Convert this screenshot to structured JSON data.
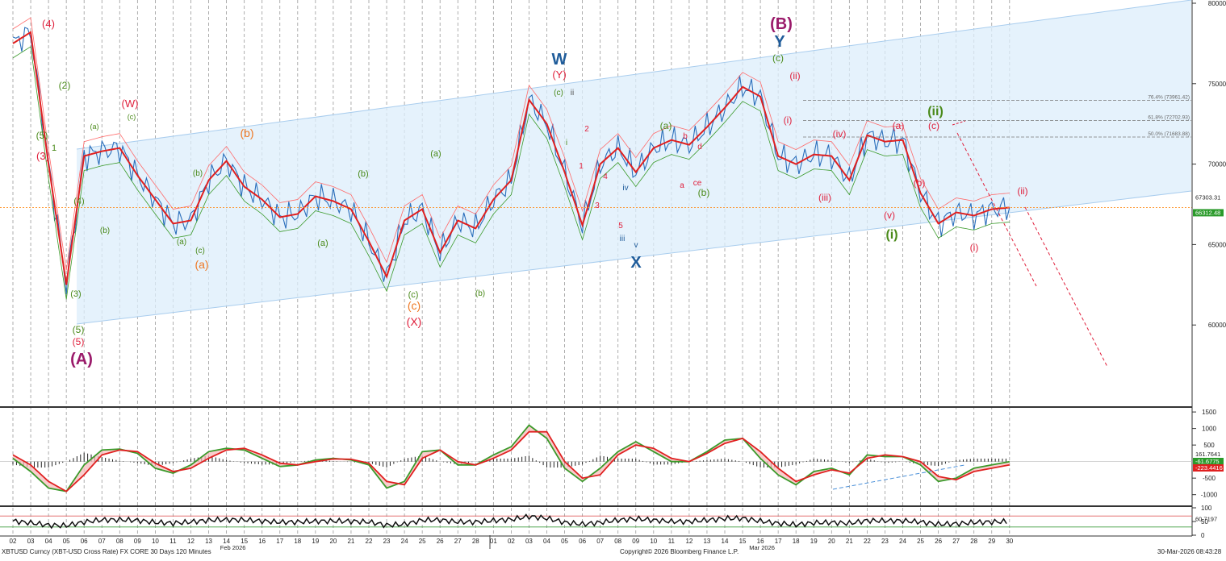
{
  "chart_data": [
    {
      "type": "line",
      "panel": "price",
      "series": [
        {
          "name": "XBT-USD Cross Rate (approx. 2h closes)",
          "x": [
            "02",
            "03",
            "04",
            "05",
            "06",
            "07",
            "08",
            "09",
            "10",
            "11",
            "12",
            "13",
            "14",
            "15",
            "16",
            "17",
            "18",
            "19",
            "20",
            "21",
            "22",
            "23",
            "24",
            "25",
            "26",
            "27",
            "28",
            "01",
            "02",
            "03",
            "04",
            "05",
            "06",
            "07",
            "08",
            "09",
            "10",
            "11",
            "12",
            "13",
            "14",
            "15",
            "16",
            "17",
            "18",
            "19",
            "20",
            "21",
            "22",
            "23",
            "24",
            "25",
            "26",
            "27",
            "28",
            "29",
            "30"
          ],
          "values": [
            77500,
            78200,
            70000,
            62500,
            70500,
            70800,
            71000,
            69300,
            67800,
            66300,
            66500,
            69000,
            70200,
            68600,
            67800,
            66700,
            66900,
            68000,
            67700,
            67200,
            65200,
            63000,
            66500,
            67200,
            64500,
            66500,
            66000,
            67800,
            69000,
            74000,
            72500,
            69500,
            66200,
            70000,
            71000,
            69500,
            71000,
            71500,
            71200,
            72300,
            73500,
            74800,
            74200,
            70500,
            70000,
            70600,
            70500,
            69000,
            71800,
            71400,
            71500,
            68200,
            66300,
            67000,
            66800,
            67200,
            67300
          ]
        }
      ],
      "y_ticks": [
        80000,
        75000,
        70000,
        65000,
        60000
      ],
      "ylim": [
        55000,
        80200
      ],
      "price_tags": [
        "67303.31",
        "66312.48"
      ],
      "fib_levels": [
        "76.4% (73961.42)",
        "61.8% (72702.93)",
        "50.0% (71683.88)"
      ],
      "wave_labels": [
        "(A)",
        "(B)",
        "(W)",
        "(X)",
        "(Y)",
        "W",
        "X",
        "Y",
        "(a)",
        "(b)",
        "(c)",
        "(i)",
        "(ii)",
        "(iii)",
        "(iv)",
        "(v)",
        "(1)",
        "(2)",
        "(3)",
        "(4)",
        "(5)",
        "a",
        "b",
        "c",
        "d",
        "e",
        "i",
        "ii",
        "iii",
        "iv",
        "v",
        "1",
        "2",
        "3",
        "4",
        "5"
      ],
      "x_axis_months": [
        "Feb 2026",
        "Mar 2026"
      ]
    },
    {
      "type": "line",
      "panel": "macd",
      "y_ticks": [
        "1500",
        "1000",
        "500",
        "-500",
        "-1000"
      ],
      "value_tags": [
        "161.7641",
        "-61.6775",
        "-223.4416"
      ],
      "macd": [
        100,
        -300,
        -800,
        -900,
        -100,
        350,
        380,
        250,
        -200,
        -350,
        -100,
        300,
        400,
        350,
        100,
        -150,
        -100,
        50,
        100,
        50,
        -100,
        -800,
        -600,
        300,
        350,
        -100,
        -100,
        200,
        450,
        1100,
        700,
        -200,
        -600,
        -200,
        300,
        600,
        300,
        0,
        0,
        300,
        650,
        700,
        100,
        -400,
        -700,
        -300,
        -200,
        -400,
        200,
        150,
        150,
        -100,
        -600,
        -500,
        -200,
        -100,
        0
      ],
      "signal": [
        200,
        -100,
        -600,
        -900,
        -400,
        200,
        350,
        300,
        -50,
        -300,
        -200,
        100,
        350,
        400,
        200,
        -50,
        -100,
        0,
        80,
        70,
        -50,
        -600,
        -700,
        100,
        350,
        0,
        -100,
        100,
        350,
        900,
        900,
        0,
        -500,
        -400,
        200,
        500,
        400,
        100,
        0,
        250,
        550,
        700,
        300,
        -200,
        -600,
        -400,
        -250,
        -350,
        100,
        200,
        150,
        0,
        -450,
        -550,
        -300,
        -200,
        -100
      ],
      "ylim": [
        -1300,
        1600
      ]
    },
    {
      "type": "line",
      "panel": "rsi",
      "y_ticks": [
        "100",
        "50",
        "0"
      ],
      "value_tags": [
        "60.7197"
      ],
      "ylim": [
        0,
        100
      ]
    }
  ],
  "footer": {
    "left": "XBTUSD Curncy (XBT-USD Cross Rate) FX CORE 30 Days 120 Minutes",
    "center": "Copyright© 2026 Bloomberg Finance L.P.",
    "right": "30-Mar-2026 08:43:28"
  },
  "colors": {
    "price_line": "#2a6ebb",
    "ma_red": "#e02020",
    "ma_green": "#3a9a2a",
    "channel": "#dcedfb",
    "wave_red": "#e0203c",
    "wave_purple": "#9a1a6a",
    "wave_blue": "#1f5c9a",
    "wave_green": "#4a8a1a",
    "wave_orange": "#ee7722"
  }
}
